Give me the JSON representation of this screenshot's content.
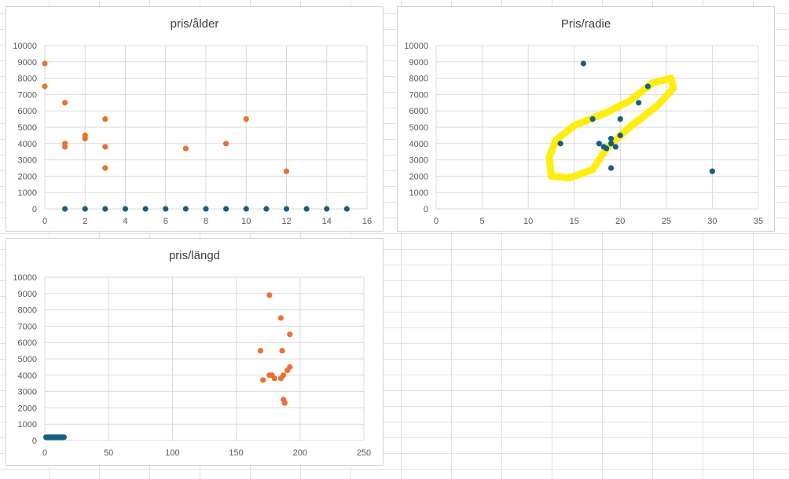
{
  "colors": {
    "orange": "#e97132",
    "teal": "#156082",
    "highlight": "#ffec00"
  },
  "chart_data": [
    {
      "type": "scatter",
      "title": "pris/ålder",
      "xlim": [
        0,
        16
      ],
      "ylim": [
        0,
        10000
      ],
      "x_ticks": [
        "0",
        "2",
        "4",
        "6",
        "8",
        "10",
        "12",
        "14",
        "16"
      ],
      "y_ticks": [
        "0",
        "1000",
        "2000",
        "3000",
        "4000",
        "5000",
        "6000",
        "7000",
        "8000",
        "9000",
        "10000"
      ],
      "grid": true,
      "series": [
        {
          "color": "orange",
          "points": [
            [
              0,
              8900
            ],
            [
              0,
              7500
            ],
            [
              1,
              6500
            ],
            [
              1,
              4000
            ],
            [
              1,
              3800
            ],
            [
              2,
              4500
            ],
            [
              2,
              4300
            ],
            [
              3,
              5500
            ],
            [
              3,
              3800
            ],
            [
              3,
              2500
            ],
            [
              7,
              3700
            ],
            [
              9,
              4000
            ],
            [
              10,
              5500
            ],
            [
              12,
              2300
            ]
          ]
        },
        {
          "color": "teal",
          "points": [
            [
              1,
              0
            ],
            [
              2,
              0
            ],
            [
              3,
              0
            ],
            [
              4,
              0
            ],
            [
              5,
              0
            ],
            [
              6,
              0
            ],
            [
              7,
              0
            ],
            [
              8,
              0
            ],
            [
              9,
              0
            ],
            [
              10,
              0
            ],
            [
              11,
              0
            ],
            [
              12,
              0
            ],
            [
              13,
              0
            ],
            [
              14,
              0
            ],
            [
              15,
              0
            ]
          ]
        }
      ]
    },
    {
      "type": "scatter",
      "title": "Pris/radie",
      "xlim": [
        0,
        35
      ],
      "ylim": [
        0,
        10000
      ],
      "x_ticks": [
        "0",
        "5",
        "10",
        "15",
        "20",
        "25",
        "30",
        "35"
      ],
      "y_ticks": [
        "0",
        "1000",
        "2000",
        "3000",
        "4000",
        "5000",
        "6000",
        "7000",
        "8000",
        "9000",
        "10000"
      ],
      "grid": true,
      "annotation": "yellow hand-drawn loop around the cluster",
      "series": [
        {
          "color": "teal",
          "points": [
            [
              16,
              8900
            ],
            [
              23,
              7500
            ],
            [
              22,
              6500
            ],
            [
              17,
              5500
            ],
            [
              20,
              5500
            ],
            [
              13.5,
              4000
            ],
            [
              20,
              4500
            ],
            [
              19,
              4300
            ],
            [
              19,
              4000
            ],
            [
              17.7,
              4000
            ],
            [
              18.2,
              3800
            ],
            [
              18.5,
              3700
            ],
            [
              19.5,
              3800
            ],
            [
              19,
              2500
            ],
            [
              30,
              2300
            ]
          ]
        }
      ]
    },
    {
      "type": "scatter",
      "title": "pris/längd",
      "xlim": [
        0,
        250
      ],
      "ylim": [
        0,
        10000
      ],
      "x_ticks": [
        "0",
        "50",
        "100",
        "150",
        "200",
        "250"
      ],
      "y_ticks": [
        "0",
        "1000",
        "2000",
        "3000",
        "4000",
        "5000",
        "6000",
        "7000",
        "8000",
        "9000",
        "10000"
      ],
      "grid": true,
      "series": [
        {
          "color": "orange",
          "points": [
            [
              176,
              8900
            ],
            [
              185,
              7500
            ],
            [
              192,
              6500
            ],
            [
              169,
              5500
            ],
            [
              186,
              5500
            ],
            [
              192,
              4500
            ],
            [
              190,
              4300
            ],
            [
              176,
              4000
            ],
            [
              178,
              4000
            ],
            [
              187,
              4000
            ],
            [
              180,
              3800
            ],
            [
              185,
              3800
            ],
            [
              171,
              3700
            ],
            [
              187,
              2500
            ],
            [
              188,
              2300
            ]
          ]
        },
        {
          "color": "teal",
          "points": [
            [
              1,
              200
            ],
            [
              2,
              200
            ],
            [
              3,
              200
            ],
            [
              4,
              200
            ],
            [
              5,
              200
            ],
            [
              6,
              200
            ],
            [
              7,
              200
            ],
            [
              8,
              200
            ],
            [
              9,
              200
            ],
            [
              10,
              200
            ],
            [
              11,
              200
            ],
            [
              12,
              200
            ],
            [
              13,
              200
            ],
            [
              14,
              200
            ],
            [
              15,
              200
            ]
          ]
        }
      ]
    }
  ]
}
